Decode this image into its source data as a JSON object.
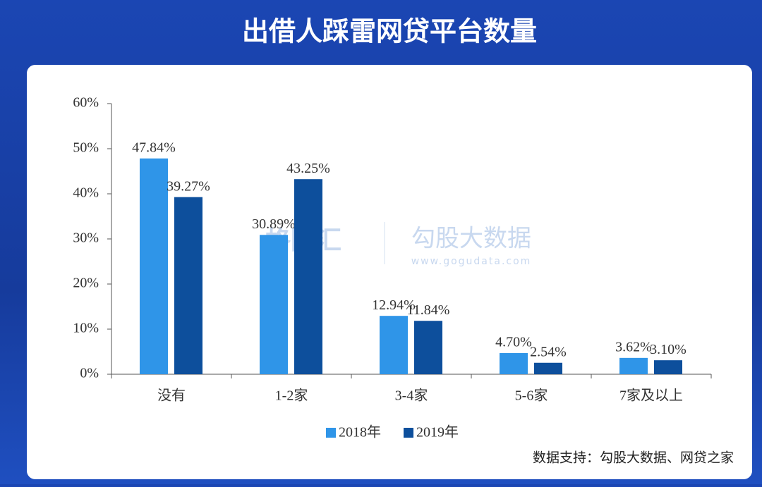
{
  "chart_data": {
    "type": "bar",
    "title": "出借人踩雷网贷平台数量",
    "categories": [
      "没有",
      "1-2家",
      "3-4家",
      "5-6家",
      "7家及以上"
    ],
    "series": [
      {
        "name": "2018年",
        "color": "#2f95e8",
        "values": [
          47.84,
          30.89,
          12.94,
          4.7,
          3.62
        ],
        "value_labels": [
          "47.84%",
          "30.89%",
          "12.94%",
          "4.70%",
          "3.62%"
        ]
      },
      {
        "name": "2019年",
        "color": "#0d4f9c",
        "values": [
          39.27,
          43.25,
          11.84,
          2.54,
          3.1
        ],
        "value_labels": [
          "39.27%",
          "43.25%",
          "11.84%",
          "2.54%",
          "3.10%"
        ]
      }
    ],
    "ylim": [
      0,
      60
    ],
    "yticks": [
      {
        "value": 0,
        "label": "0%"
      },
      {
        "value": 10,
        "label": "10%"
      },
      {
        "value": 20,
        "label": "20%"
      },
      {
        "value": 30,
        "label": "30%"
      },
      {
        "value": 40,
        "label": "40%"
      },
      {
        "value": 50,
        "label": "50%"
      },
      {
        "value": 60,
        "label": "60%"
      }
    ],
    "grid": false,
    "legend": "bottom",
    "watermark": [
      "格隆汇",
      "勾股大数据",
      "www.gogudata.com"
    ],
    "source": "数据支持：勾股大数据、网贷之家"
  }
}
